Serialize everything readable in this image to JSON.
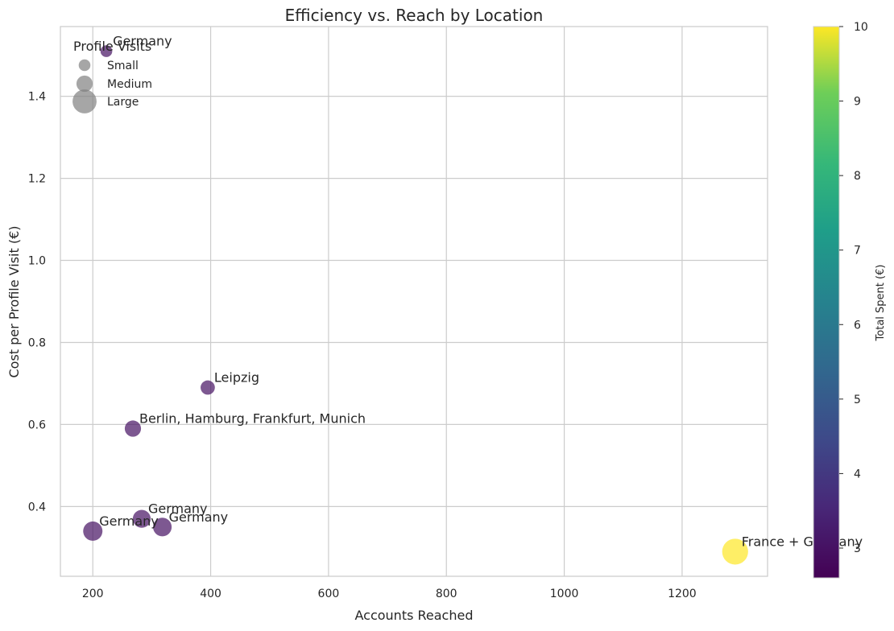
{
  "chart_data": {
    "type": "scatter",
    "title": "Efficiency vs. Reach by Location",
    "xlabel": "Accounts Reached",
    "ylabel": "Cost per Profile Visit (€)",
    "xlim": [
      145,
      1345
    ],
    "ylim": [
      0.23,
      1.57
    ],
    "xticks": [
      200,
      400,
      600,
      800,
      1000,
      1200
    ],
    "yticks": [
      0.4,
      0.6,
      0.8,
      1.0,
      1.2,
      1.4
    ],
    "grid": true,
    "points": [
      {
        "label": "Germany",
        "x": 223,
        "y": 1.51,
        "total_spent": 3.0,
        "size_level": 1
      },
      {
        "label": "Leipzig",
        "x": 395,
        "y": 0.69,
        "total_spent": 3.0,
        "size_level": 2
      },
      {
        "label": "Berlin, Hamburg, Frankfurt, Munich",
        "x": 268,
        "y": 0.59,
        "total_spent": 3.0,
        "size_level": 3
      },
      {
        "label": "Germany",
        "x": 283,
        "y": 0.37,
        "total_spent": 3.0,
        "size_level": 4
      },
      {
        "label": "Germany",
        "x": 318,
        "y": 0.35,
        "total_spent": 3.0,
        "size_level": 4.5
      },
      {
        "label": "Germany",
        "x": 200,
        "y": 0.34,
        "total_spent": 3.0,
        "size_level": 5
      },
      {
        "label": "France + Germany",
        "x": 1290,
        "y": 0.29,
        "total_spent": 10.0,
        "size_level": 11
      }
    ],
    "size_legend": {
      "title": "Profile Visits",
      "items": [
        {
          "label": "Small",
          "size_level": 1
        },
        {
          "label": "Medium",
          "size_level": 3
        },
        {
          "label": "Large",
          "size_level": 9
        }
      ],
      "placement": "top-left"
    },
    "colorbar": {
      "label": "Total Spent (€)",
      "range": [
        2.6,
        10
      ],
      "ticks": [
        3,
        4,
        5,
        6,
        7,
        8,
        9,
        10
      ],
      "colormap": "viridis"
    },
    "colors": {
      "low": "#440154",
      "high": "#fde725",
      "grid": "#cccccc",
      "axis": "#cccccc",
      "legend_marker": "#808080"
    }
  }
}
